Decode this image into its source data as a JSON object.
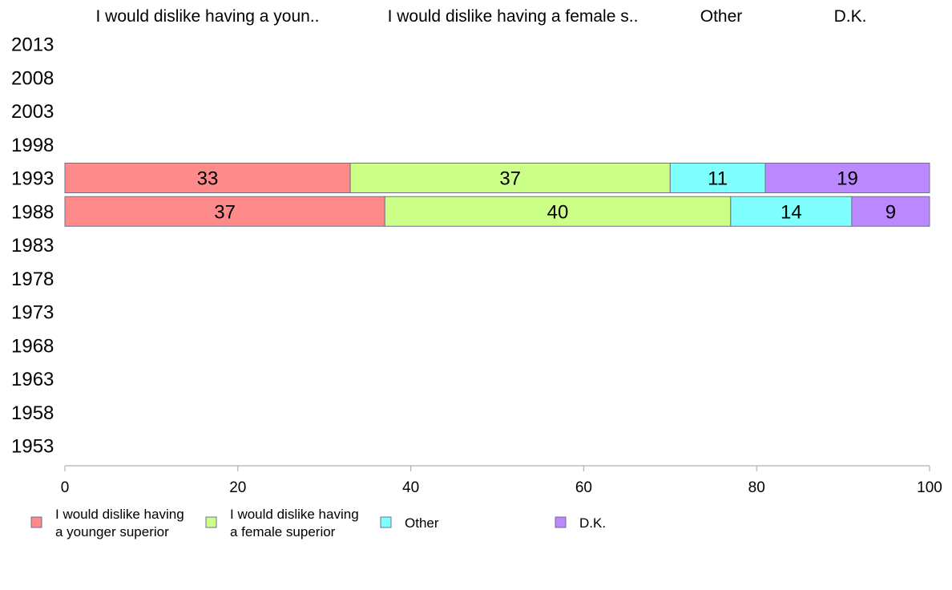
{
  "chart_data": {
    "type": "bar",
    "orientation": "horizontal",
    "stacked": true,
    "categories": [
      "2013",
      "2008",
      "2003",
      "1998",
      "1993",
      "1988",
      "1983",
      "1978",
      "1973",
      "1968",
      "1963",
      "1958",
      "1953"
    ],
    "column_headers": [
      "I would dislike having a youn..",
      "I would dislike having a female s..",
      "Other",
      "D.K."
    ],
    "series": [
      {
        "name": "I would dislike having\na younger superior",
        "color": "#ff8a8a",
        "values": [
          null,
          null,
          null,
          null,
          33,
          37,
          null,
          null,
          null,
          null,
          null,
          null,
          null
        ]
      },
      {
        "name": "I would dislike having\na female superior",
        "color": "#ccff88",
        "values": [
          null,
          null,
          null,
          null,
          37,
          40,
          null,
          null,
          null,
          null,
          null,
          null,
          null
        ]
      },
      {
        "name": "Other",
        "color": "#80ffff",
        "values": [
          null,
          null,
          null,
          null,
          11,
          14,
          null,
          null,
          null,
          null,
          null,
          null,
          null
        ]
      },
      {
        "name": "D.K.",
        "color": "#bb88ff",
        "values": [
          null,
          null,
          null,
          null,
          19,
          9,
          null,
          null,
          null,
          null,
          null,
          null,
          null
        ]
      }
    ],
    "xlim": [
      0,
      100
    ],
    "xticks": [
      0,
      20,
      40,
      60,
      80,
      100
    ],
    "grid": false,
    "legend_position": "bottom"
  }
}
